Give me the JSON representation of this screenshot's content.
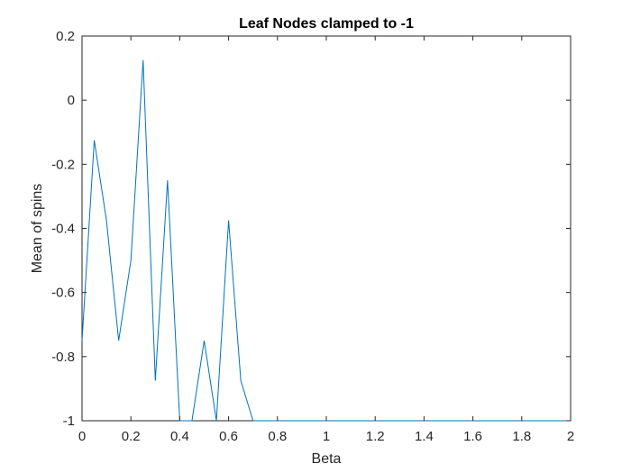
{
  "chart_data": {
    "type": "line",
    "title": "Leaf Nodes clamped to -1",
    "xlabel": "Beta",
    "ylabel": "Mean of spins",
    "xlim": [
      0,
      2
    ],
    "ylim": [
      -1,
      0.2
    ],
    "xticks": [
      0,
      0.2,
      0.4,
      0.6,
      0.8,
      1,
      1.2,
      1.4,
      1.6,
      1.8,
      2
    ],
    "xtick_labels": [
      "0",
      "0.2",
      "0.4",
      "0.6",
      "0.8",
      "1",
      "1.2",
      "1.4",
      "1.6",
      "1.8",
      "2"
    ],
    "yticks": [
      -1,
      -0.8,
      -0.6,
      -0.4,
      -0.2,
      0,
      0.2
    ],
    "ytick_labels": [
      "-1",
      "-0.8",
      "-0.6",
      "-0.4",
      "-0.2",
      "0",
      "0.2"
    ],
    "grid": false,
    "box": true,
    "series": [
      {
        "color": "#0072BD",
        "x": [
          0,
          0.05,
          0.1,
          0.15,
          0.2,
          0.25,
          0.3,
          0.35,
          0.4,
          0.45,
          0.5,
          0.55,
          0.6,
          0.65,
          0.7,
          0.75,
          0.8,
          0.85,
          0.9,
          0.95,
          1.0,
          1.05,
          1.1,
          1.15,
          1.2,
          1.25,
          1.3,
          1.35,
          1.4,
          1.45,
          1.5,
          1.55,
          1.6,
          1.65,
          1.7,
          1.75,
          1.8,
          1.85,
          1.9,
          1.95,
          2.0
        ],
        "y": [
          -0.75,
          -0.125,
          -0.375,
          -0.75,
          -0.5,
          0.125,
          -0.875,
          -0.25,
          -1,
          -1,
          -0.75,
          -1,
          -0.375,
          -0.875,
          -1,
          -1,
          -1,
          -1,
          -1,
          -1,
          -1,
          -1,
          -1,
          -1,
          -1,
          -1,
          -1,
          -1,
          -1,
          -1,
          -1,
          -1,
          -1,
          -1,
          -1,
          -1,
          -1,
          -1,
          -1,
          -1,
          -1
        ]
      }
    ]
  }
}
